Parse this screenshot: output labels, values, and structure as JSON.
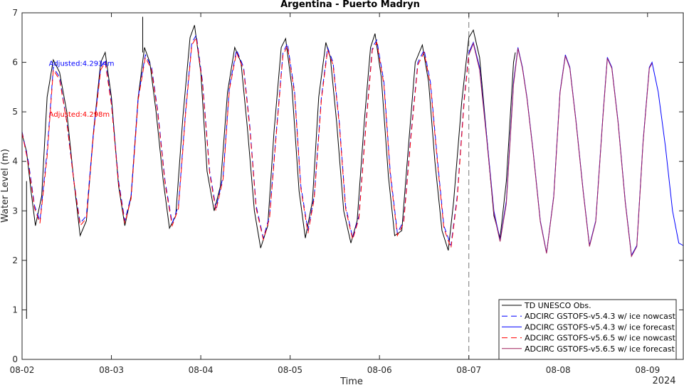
{
  "chart_data": {
    "type": "line",
    "title": "Argentina - Puerto Madryn",
    "xlabel": "Time",
    "ylabel": "Water Level (m)",
    "year_label": "2024",
    "x_unit": "days since 2024-08-02 00:00",
    "xlim": [
      0,
      7.4
    ],
    "ylim": [
      0,
      7
    ],
    "x_ticks": [
      {
        "value": 0,
        "label": "08-02"
      },
      {
        "value": 1,
        "label": "08-03"
      },
      {
        "value": 2,
        "label": "08-04"
      },
      {
        "value": 3,
        "label": "08-05"
      },
      {
        "value": 4,
        "label": "08-06"
      },
      {
        "value": 5,
        "label": "08-07"
      },
      {
        "value": 6,
        "label": "08-08"
      },
      {
        "value": 7,
        "label": "08-09"
      }
    ],
    "y_ticks": [
      0,
      1,
      2,
      3,
      4,
      5,
      6,
      7
    ],
    "nowcast_end": 5.0,
    "annotations": [
      {
        "text": "Adjusted:4.2934m",
        "x": 0.3,
        "y": 5.93,
        "color": "#0000ff"
      },
      {
        "text": "Adjusted:4.298m",
        "x": 0.3,
        "y": 4.9,
        "color": "#ff0000"
      }
    ],
    "series": [
      {
        "name": "TD UNESCO Obs.",
        "color": "#000000",
        "dash": "solid",
        "points": [
          [
            0.0,
            4.55
          ],
          [
            0.05,
            4.2
          ],
          [
            0.1,
            3.4
          ],
          [
            0.15,
            2.7
          ],
          [
            0.22,
            3.3
          ],
          [
            0.28,
            5.3
          ],
          [
            0.35,
            6.05
          ],
          [
            0.42,
            5.8
          ],
          [
            0.5,
            5.0
          ],
          [
            0.58,
            3.6
          ],
          [
            0.65,
            2.5
          ],
          [
            0.72,
            2.8
          ],
          [
            0.8,
            4.6
          ],
          [
            0.88,
            6.0
          ],
          [
            0.93,
            6.2
          ],
          [
            1.0,
            5.3
          ],
          [
            1.08,
            3.5
          ],
          [
            1.15,
            2.7
          ],
          [
            1.22,
            3.3
          ],
          [
            1.3,
            5.3
          ],
          [
            1.37,
            6.3
          ],
          [
            1.43,
            6.0
          ],
          [
            1.5,
            5.0
          ],
          [
            1.58,
            3.6
          ],
          [
            1.65,
            2.65
          ],
          [
            1.72,
            2.9
          ],
          [
            1.8,
            4.9
          ],
          [
            1.88,
            6.5
          ],
          [
            1.93,
            6.75
          ],
          [
            2.0,
            5.8
          ],
          [
            2.07,
            3.8
          ],
          [
            2.15,
            3.0
          ],
          [
            2.22,
            3.5
          ],
          [
            2.3,
            5.4
          ],
          [
            2.38,
            6.3
          ],
          [
            2.45,
            6.0
          ],
          [
            2.52,
            4.7
          ],
          [
            2.6,
            3.0
          ],
          [
            2.67,
            2.25
          ],
          [
            2.75,
            2.7
          ],
          [
            2.82,
            4.6
          ],
          [
            2.9,
            6.3
          ],
          [
            2.95,
            6.48
          ],
          [
            3.02,
            5.5
          ],
          [
            3.1,
            3.4
          ],
          [
            3.17,
            2.45
          ],
          [
            3.25,
            3.2
          ],
          [
            3.32,
            5.3
          ],
          [
            3.4,
            6.4
          ],
          [
            3.45,
            6.1
          ],
          [
            3.52,
            4.8
          ],
          [
            3.6,
            3.0
          ],
          [
            3.68,
            2.35
          ],
          [
            3.75,
            2.8
          ],
          [
            3.83,
            4.8
          ],
          [
            3.9,
            6.3
          ],
          [
            3.95,
            6.58
          ],
          [
            4.02,
            5.7
          ],
          [
            4.1,
            3.7
          ],
          [
            4.17,
            2.5
          ],
          [
            4.25,
            2.6
          ],
          [
            4.32,
            4.2
          ],
          [
            4.4,
            6.0
          ],
          [
            4.48,
            6.35
          ],
          [
            4.55,
            5.6
          ],
          [
            4.62,
            4.0
          ],
          [
            4.7,
            2.6
          ],
          [
            4.77,
            2.2
          ],
          [
            4.83,
            3.2
          ],
          [
            4.92,
            5.2
          ],
          [
            5.0,
            6.5
          ],
          [
            5.05,
            6.65
          ],
          [
            5.12,
            6.1
          ],
          [
            5.2,
            4.5
          ],
          [
            5.28,
            2.9
          ],
          [
            5.35,
            2.45
          ],
          [
            5.42,
            3.6
          ],
          [
            5.5,
            6.0
          ],
          [
            5.52,
            6.2
          ]
        ]
      },
      {
        "name": "ADCIRC GSTOFS-v5.4.3 w/ ice nowcast",
        "color": "#0000ff",
        "dash": "8,5",
        "points": [
          [
            0.0,
            4.6
          ],
          [
            0.07,
            4.0
          ],
          [
            0.14,
            3.1
          ],
          [
            0.2,
            2.8
          ],
          [
            0.28,
            4.2
          ],
          [
            0.35,
            5.9
          ],
          [
            0.42,
            5.7
          ],
          [
            0.5,
            4.8
          ],
          [
            0.58,
            3.6
          ],
          [
            0.65,
            2.75
          ],
          [
            0.72,
            2.9
          ],
          [
            0.8,
            4.6
          ],
          [
            0.88,
            5.9
          ],
          [
            0.93,
            6.05
          ],
          [
            1.0,
            5.2
          ],
          [
            1.08,
            3.6
          ],
          [
            1.15,
            2.8
          ],
          [
            1.22,
            3.3
          ],
          [
            1.3,
            5.3
          ],
          [
            1.38,
            6.15
          ],
          [
            1.45,
            5.9
          ],
          [
            1.52,
            5.0
          ],
          [
            1.6,
            3.6
          ],
          [
            1.68,
            2.75
          ],
          [
            1.75,
            3.1
          ],
          [
            1.83,
            5.0
          ],
          [
            1.9,
            6.4
          ],
          [
            1.95,
            6.55
          ],
          [
            2.02,
            5.6
          ],
          [
            2.1,
            3.8
          ],
          [
            2.17,
            3.05
          ],
          [
            2.25,
            3.7
          ],
          [
            2.32,
            5.5
          ],
          [
            2.4,
            6.25
          ],
          [
            2.48,
            5.9
          ],
          [
            2.55,
            4.7
          ],
          [
            2.62,
            3.1
          ],
          [
            2.7,
            2.45
          ],
          [
            2.77,
            2.9
          ],
          [
            2.85,
            4.7
          ],
          [
            2.92,
            6.2
          ],
          [
            2.97,
            6.38
          ],
          [
            3.05,
            5.4
          ],
          [
            3.12,
            3.5
          ],
          [
            3.2,
            2.6
          ],
          [
            3.27,
            3.3
          ],
          [
            3.35,
            5.3
          ],
          [
            3.42,
            6.3
          ],
          [
            3.48,
            6.0
          ],
          [
            3.55,
            4.8
          ],
          [
            3.62,
            3.1
          ],
          [
            3.7,
            2.45
          ],
          [
            3.77,
            2.9
          ],
          [
            3.85,
            4.8
          ],
          [
            3.92,
            6.3
          ],
          [
            3.97,
            6.45
          ],
          [
            4.05,
            5.6
          ],
          [
            4.12,
            3.8
          ],
          [
            4.2,
            2.55
          ],
          [
            4.27,
            2.8
          ],
          [
            4.35,
            4.5
          ],
          [
            4.43,
            6.0
          ],
          [
            4.5,
            6.25
          ],
          [
            4.57,
            5.6
          ],
          [
            4.65,
            4.0
          ],
          [
            4.72,
            2.7
          ],
          [
            4.8,
            2.3
          ],
          [
            4.87,
            3.3
          ],
          [
            4.95,
            5.3
          ],
          [
            5.0,
            6.2
          ]
        ]
      },
      {
        "name": "ADCIRC GSTOFS-v5.4.3 w/ ice forecast",
        "color": "#0000ff",
        "dash": "solid",
        "points": [
          [
            5.0,
            6.2
          ],
          [
            5.05,
            6.4
          ],
          [
            5.12,
            5.9
          ],
          [
            5.2,
            4.5
          ],
          [
            5.28,
            3.0
          ],
          [
            5.35,
            2.4
          ],
          [
            5.42,
            3.2
          ],
          [
            5.5,
            5.6
          ],
          [
            5.55,
            6.3
          ],
          [
            5.6,
            5.9
          ],
          [
            5.65,
            5.3
          ],
          [
            5.72,
            4.2
          ],
          [
            5.8,
            2.8
          ],
          [
            5.87,
            2.15
          ],
          [
            5.95,
            3.3
          ],
          [
            6.02,
            5.4
          ],
          [
            6.08,
            6.15
          ],
          [
            6.13,
            5.9
          ],
          [
            6.2,
            4.8
          ],
          [
            6.28,
            3.4
          ],
          [
            6.35,
            2.3
          ],
          [
            6.42,
            2.8
          ],
          [
            6.5,
            4.9
          ],
          [
            6.55,
            6.1
          ],
          [
            6.6,
            5.9
          ],
          [
            6.67,
            4.8
          ],
          [
            6.75,
            3.2
          ],
          [
            6.82,
            2.1
          ],
          [
            6.88,
            2.3
          ],
          [
            6.95,
            4.4
          ],
          [
            7.02,
            5.9
          ],
          [
            7.05,
            6.0
          ],
          [
            7.12,
            5.4
          ],
          [
            7.2,
            4.3
          ],
          [
            7.28,
            3.0
          ],
          [
            7.35,
            2.35
          ],
          [
            7.4,
            2.3
          ]
        ]
      },
      {
        "name": "ADCIRC GSTOFS-v5.6.5 w/ ice nowcast",
        "color": "#ff0000",
        "dash": "8,5",
        "points": [
          [
            0.0,
            4.58
          ],
          [
            0.07,
            3.95
          ],
          [
            0.14,
            3.05
          ],
          [
            0.2,
            2.75
          ],
          [
            0.28,
            4.1
          ],
          [
            0.35,
            5.85
          ],
          [
            0.42,
            5.65
          ],
          [
            0.5,
            4.8
          ],
          [
            0.58,
            3.6
          ],
          [
            0.65,
            2.7
          ],
          [
            0.72,
            2.85
          ],
          [
            0.8,
            4.55
          ],
          [
            0.88,
            5.85
          ],
          [
            0.93,
            6.0
          ],
          [
            1.0,
            5.15
          ],
          [
            1.08,
            3.55
          ],
          [
            1.15,
            2.75
          ],
          [
            1.22,
            3.25
          ],
          [
            1.3,
            5.25
          ],
          [
            1.38,
            6.1
          ],
          [
            1.45,
            5.85
          ],
          [
            1.52,
            4.95
          ],
          [
            1.6,
            3.55
          ],
          [
            1.68,
            2.7
          ],
          [
            1.75,
            3.05
          ],
          [
            1.83,
            4.95
          ],
          [
            1.9,
            6.35
          ],
          [
            1.95,
            6.5
          ],
          [
            2.02,
            5.55
          ],
          [
            2.1,
            3.75
          ],
          [
            2.17,
            3.0
          ],
          [
            2.25,
            3.65
          ],
          [
            2.32,
            5.45
          ],
          [
            2.4,
            6.2
          ],
          [
            2.48,
            5.85
          ],
          [
            2.55,
            4.65
          ],
          [
            2.62,
            3.05
          ],
          [
            2.7,
            2.42
          ],
          [
            2.77,
            2.85
          ],
          [
            2.85,
            4.65
          ],
          [
            2.92,
            6.15
          ],
          [
            2.97,
            6.33
          ],
          [
            3.05,
            5.35
          ],
          [
            3.12,
            3.45
          ],
          [
            3.2,
            2.55
          ],
          [
            3.27,
            3.25
          ],
          [
            3.35,
            5.25
          ],
          [
            3.42,
            6.25
          ],
          [
            3.48,
            5.95
          ],
          [
            3.55,
            4.75
          ],
          [
            3.62,
            3.05
          ],
          [
            3.7,
            2.42
          ],
          [
            3.77,
            2.85
          ],
          [
            3.85,
            4.75
          ],
          [
            3.92,
            6.25
          ],
          [
            3.97,
            6.4
          ],
          [
            4.05,
            5.55
          ],
          [
            4.12,
            3.75
          ],
          [
            4.2,
            2.5
          ],
          [
            4.27,
            2.75
          ],
          [
            4.35,
            4.45
          ],
          [
            4.43,
            5.95
          ],
          [
            4.5,
            6.2
          ],
          [
            4.57,
            5.55
          ],
          [
            4.65,
            3.95
          ],
          [
            4.72,
            2.65
          ],
          [
            4.8,
            2.25
          ],
          [
            4.87,
            3.25
          ],
          [
            4.95,
            5.25
          ],
          [
            5.0,
            6.15
          ]
        ]
      },
      {
        "name": "ADCIRC GSTOFS-v5.6.5 w/ ice forecast",
        "color": "#a0205a",
        "dash": "solid",
        "points": [
          [
            5.0,
            6.15
          ],
          [
            5.05,
            6.38
          ],
          [
            5.12,
            5.85
          ],
          [
            5.2,
            4.45
          ],
          [
            5.28,
            2.95
          ],
          [
            5.35,
            2.38
          ],
          [
            5.42,
            3.15
          ],
          [
            5.5,
            5.55
          ],
          [
            5.55,
            6.28
          ],
          [
            5.6,
            5.88
          ],
          [
            5.65,
            5.28
          ],
          [
            5.72,
            4.18
          ],
          [
            5.8,
            2.78
          ],
          [
            5.87,
            2.14
          ],
          [
            5.95,
            3.28
          ],
          [
            6.02,
            5.38
          ],
          [
            6.08,
            6.13
          ],
          [
            6.13,
            5.88
          ],
          [
            6.2,
            4.78
          ],
          [
            6.28,
            3.38
          ],
          [
            6.35,
            2.28
          ],
          [
            6.42,
            2.78
          ],
          [
            6.5,
            4.88
          ],
          [
            6.55,
            6.08
          ],
          [
            6.6,
            5.88
          ],
          [
            6.67,
            4.78
          ],
          [
            6.75,
            3.18
          ],
          [
            6.82,
            2.08
          ],
          [
            6.88,
            2.28
          ],
          [
            6.95,
            4.38
          ],
          [
            7.02,
            5.88
          ],
          [
            7.05,
            5.98
          ]
        ]
      }
    ]
  }
}
